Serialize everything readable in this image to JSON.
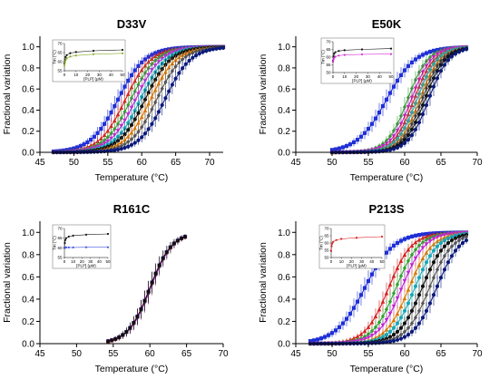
{
  "chart_data": [
    {
      "type": "line",
      "title": "D33V",
      "xlabel": "Temperature (°C)",
      "ylabel": "Fractional variation",
      "xlim": [
        45,
        72
      ],
      "ylim": [
        0,
        1.1
      ],
      "xticks": [
        45,
        50,
        55,
        60,
        65,
        70
      ],
      "yticks": [
        "0.0",
        "0.2",
        "0.4",
        "0.6",
        "0.8",
        "1.0"
      ],
      "grid": false,
      "x_range": [
        47,
        72
      ],
      "series": [
        {
          "color": "#1f2fd6",
          "marker": "square",
          "midpoint": 56.5,
          "width": 2.0
        },
        {
          "color": "#d62020",
          "marker": "triangle",
          "midpoint": 57.6,
          "width": 1.9
        },
        {
          "color": "#2fa32f",
          "marker": "diamond",
          "midpoint": 58.4,
          "width": 1.9
        },
        {
          "color": "#c026d3",
          "marker": "triangle-down",
          "midpoint": 59.1,
          "width": 1.9
        },
        {
          "color": "#1aa7b8",
          "marker": "circle",
          "midpoint": 59.8,
          "width": 1.9
        },
        {
          "color": "#111111",
          "marker": "circle",
          "midpoint": 60.5,
          "width": 1.9
        },
        {
          "color": "#d97706",
          "marker": "triangle",
          "midpoint": 61.3,
          "width": 1.9
        },
        {
          "color": "#555555",
          "marker": "diamond",
          "midpoint": 62.2,
          "width": 1.9
        },
        {
          "color": "#0b1a7a",
          "marker": "circle",
          "midpoint": 63.4,
          "width": 1.9
        }
      ],
      "inset": {
        "xlabel": "[PLP] (µM)",
        "ylabel": "Tm (°C)",
        "xticks": [
          "0",
          "10",
          "20",
          "30",
          "40",
          "50"
        ],
        "yticks": [
          "55",
          "60",
          "65",
          "70"
        ],
        "xlim": [
          0,
          50
        ],
        "ylim": [
          55,
          70
        ],
        "series": [
          {
            "color": "#111111",
            "x": [
              0,
              0.5,
              1,
              2,
              5,
              10,
              25,
              50
            ],
            "y": [
              59.2,
              61.0,
              62.5,
              63.6,
              64.7,
              65.3,
              66.0,
              66.5
            ]
          },
          {
            "color": "#8aaa2a",
            "x": [
              0,
              0.5,
              1,
              2,
              5,
              10,
              25,
              50
            ],
            "y": [
              58.0,
              59.5,
              60.8,
              61.8,
              62.8,
              63.4,
              64.1,
              64.6
            ]
          }
        ]
      }
    },
    {
      "type": "line",
      "title": "E50K",
      "xlabel": "Temperature (°C)",
      "ylabel": "Fractional variation",
      "xlim": [
        45,
        70
      ],
      "ylim": [
        0,
        1.1
      ],
      "xticks": [
        45,
        50,
        55,
        60,
        65,
        70
      ],
      "yticks": [
        "0.0",
        "0.2",
        "0.4",
        "0.6",
        "0.8",
        "1.0"
      ],
      "grid": false,
      "x_range": [
        50,
        68.5
      ],
      "series": [
        {
          "color": "#1f2fd6",
          "marker": "square",
          "midpoint": 57.5,
          "width": 2.0
        },
        {
          "color": "#2fa32f",
          "marker": "diamond",
          "midpoint": 60.4,
          "width": 1.4
        },
        {
          "color": "#c026d3",
          "marker": "triangle-down",
          "midpoint": 60.9,
          "width": 1.4
        },
        {
          "color": "#d62020",
          "marker": "triangle",
          "midpoint": 61.3,
          "width": 1.4
        },
        {
          "color": "#1aa7b8",
          "marker": "circle",
          "midpoint": 61.7,
          "width": 1.4
        },
        {
          "color": "#d97706",
          "marker": "triangle",
          "midpoint": 62.1,
          "width": 1.4
        },
        {
          "color": "#555555",
          "marker": "diamond",
          "midpoint": 62.4,
          "width": 1.4
        },
        {
          "color": "#111111",
          "marker": "circle",
          "midpoint": 62.8,
          "width": 1.4
        },
        {
          "color": "#0b1a7a",
          "marker": "circle",
          "midpoint": 63.3,
          "width": 1.4
        }
      ],
      "inset": {
        "xlabel": "[PLP] (µM)",
        "ylabel": "Tm (°C)",
        "xticks": [
          "0",
          "10",
          "20",
          "30",
          "40",
          "50"
        ],
        "yticks": [
          "50",
          "55",
          "60",
          "65",
          "70"
        ],
        "xlim": [
          0,
          50
        ],
        "ylim": [
          50,
          70
        ],
        "series": [
          {
            "color": "#111111",
            "x": [
              0,
              0.5,
              1,
              2,
              5,
              10,
              25,
              50
            ],
            "y": [
              57.5,
              60.5,
              62.2,
              63.2,
              64.0,
              64.5,
              65.0,
              65.5
            ]
          },
          {
            "color": "#d633d6",
            "x": [
              0,
              0.5,
              1,
              2,
              5,
              10,
              25,
              50
            ],
            "y": [
              57.0,
              58.5,
              59.6,
              60.3,
              61.0,
              61.4,
              61.8,
              62.0
            ]
          }
        ]
      }
    },
    {
      "type": "line",
      "title": "R161C",
      "xlabel": "Temperature (°C)",
      "ylabel": "Fractional variation",
      "xlim": [
        45,
        70
      ],
      "ylim": [
        0,
        1.1
      ],
      "xticks": [
        45,
        50,
        55,
        60,
        65,
        70
      ],
      "yticks": [
        "0.0",
        "0.2",
        "0.4",
        "0.6",
        "0.8",
        "1.0"
      ],
      "grid": false,
      "x_range": [
        54.3,
        65
      ],
      "series": [
        {
          "color": "#1f2fd6",
          "marker": "square",
          "midpoint": 60.0,
          "width": 1.5
        },
        {
          "color": "#d62020",
          "marker": "triangle",
          "midpoint": 60.0,
          "width": 1.5
        },
        {
          "color": "#2fa32f",
          "marker": "diamond",
          "midpoint": 60.1,
          "width": 1.5
        },
        {
          "color": "#c026d3",
          "marker": "triangle-down",
          "midpoint": 60.1,
          "width": 1.5
        },
        {
          "color": "#111111",
          "marker": "circle",
          "midpoint": 60.0,
          "width": 1.5
        }
      ],
      "inset": {
        "xlabel": "[PLP] (µM)",
        "ylabel": "Tm (°C)",
        "xticks": [
          "0",
          "10",
          "20",
          "30",
          "40",
          "50"
        ],
        "yticks": [
          "55",
          "60",
          "65",
          "70"
        ],
        "xlim": [
          0,
          50
        ],
        "ylim": [
          55,
          70
        ],
        "series": [
          {
            "color": "#111111",
            "x": [
              0,
              0.5,
              1,
              2,
              5,
              10,
              25,
              50
            ],
            "y": [
              60.0,
              62.5,
              64.0,
              65.0,
              65.8,
              66.3,
              66.8,
              67.2
            ]
          },
          {
            "color": "#4455dd",
            "x": [
              0,
              0.5,
              1,
              2,
              5,
              10,
              25,
              50
            ],
            "y": [
              60.0,
              60.1,
              60.1,
              60.2,
              60.2,
              60.2,
              60.3,
              60.3
            ]
          }
        ]
      }
    },
    {
      "type": "line",
      "title": "P213S",
      "xlabel": "Temperature (°C)",
      "ylabel": "Fractional variation",
      "xlim": [
        45,
        70
      ],
      "ylim": [
        0,
        1.1
      ],
      "xticks": [
        45,
        50,
        55,
        60,
        65,
        70
      ],
      "yticks": [
        "0.0",
        "0.2",
        "0.4",
        "0.6",
        "0.8",
        "1.0"
      ],
      "grid": false,
      "x_range": [
        47,
        68.5
      ],
      "series": [
        {
          "color": "#1f2fd6",
          "marker": "square",
          "midpoint": 54.5,
          "width": 2.0
        },
        {
          "color": "#d62020",
          "marker": "triangle",
          "midpoint": 57.8,
          "width": 1.6
        },
        {
          "color": "#2fa32f",
          "marker": "diamond",
          "midpoint": 58.8,
          "width": 1.6
        },
        {
          "color": "#c026d3",
          "marker": "triangle-down",
          "midpoint": 59.6,
          "width": 1.6
        },
        {
          "color": "#d97706",
          "marker": "triangle",
          "midpoint": 60.6,
          "width": 1.6
        },
        {
          "color": "#1aa7b8",
          "marker": "circle",
          "midpoint": 61.4,
          "width": 1.6
        },
        {
          "color": "#111111",
          "marker": "circle",
          "midpoint": 62.4,
          "width": 1.6
        },
        {
          "color": "#555555",
          "marker": "diamond",
          "midpoint": 63.4,
          "width": 1.6
        },
        {
          "color": "#0b1a7a",
          "marker": "circle",
          "midpoint": 64.4,
          "width": 1.6
        }
      ],
      "inset": {
        "xlabel": "[PLP] (µM)",
        "ylabel": "Tm (°C)",
        "xticks": [
          "0",
          "10",
          "20",
          "30",
          "40",
          "50"
        ],
        "yticks": [
          "50",
          "55",
          "60",
          "65",
          "70"
        ],
        "xlim": [
          0,
          50
        ],
        "ylim": [
          50,
          70
        ],
        "series": [
          {
            "color": "#d62020",
            "x": [
              0,
              0.5,
              1,
              2,
              5,
              10,
              25,
              50
            ],
            "y": [
              54.5,
              57.8,
              59.6,
              60.8,
              62.0,
              62.8,
              63.6,
              64.4
            ]
          }
        ]
      }
    }
  ]
}
